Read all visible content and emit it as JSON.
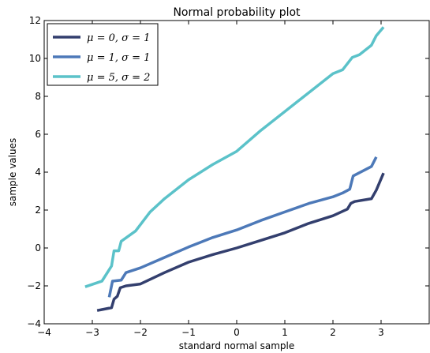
{
  "chart_data": {
    "type": "line",
    "title": "Normal probability plot",
    "xlabel": "standard normal sample",
    "ylabel": "sample values",
    "xlim": [
      -4,
      4
    ],
    "ylim": [
      -4,
      12
    ],
    "xticks": [
      -4,
      -3,
      -2,
      -1,
      0,
      1,
      2,
      3
    ],
    "yticks": [
      -4,
      -2,
      0,
      2,
      4,
      6,
      8,
      10,
      12
    ],
    "xtick_labels": [
      "−4",
      "−3",
      "−2",
      "−1",
      "0",
      "1",
      "2",
      "3"
    ],
    "ytick_labels": [
      "−4",
      "−2",
      "0",
      "2",
      "4",
      "6",
      "8",
      "10",
      "12"
    ],
    "grid": false,
    "legend_position": "top-left",
    "series": [
      {
        "name": "μ = 0, σ = 1",
        "color": "#333f6e",
        "x": [
          -2.9,
          -2.6,
          -2.55,
          -2.48,
          -2.42,
          -2.3,
          -2.0,
          -1.5,
          -1.0,
          -0.5,
          0.0,
          0.5,
          1.0,
          1.5,
          2.0,
          2.3,
          2.37,
          2.45,
          2.8,
          2.9,
          3.05
        ],
        "y": [
          -3.3,
          -3.15,
          -2.7,
          -2.55,
          -2.1,
          -2.0,
          -1.9,
          -1.3,
          -0.75,
          -0.35,
          0.0,
          0.4,
          0.8,
          1.3,
          1.7,
          2.05,
          2.35,
          2.45,
          2.6,
          3.05,
          3.95
        ]
      },
      {
        "name": "μ = 1, σ = 1",
        "color": "#4d79b8",
        "x": [
          -2.65,
          -2.58,
          -2.4,
          -2.3,
          -2.0,
          -1.5,
          -1.0,
          -0.5,
          0.0,
          0.5,
          1.0,
          1.5,
          2.0,
          2.2,
          2.35,
          2.42,
          2.8,
          2.9
        ],
        "y": [
          -2.6,
          -1.75,
          -1.7,
          -1.3,
          -1.05,
          -0.5,
          0.05,
          0.55,
          0.95,
          1.45,
          1.9,
          2.35,
          2.7,
          2.9,
          3.1,
          3.8,
          4.3,
          4.8
        ]
      },
      {
        "name": "μ = 5, σ = 2",
        "color": "#5bc2c9",
        "x": [
          -3.15,
          -2.8,
          -2.6,
          -2.55,
          -2.45,
          -2.4,
          -2.1,
          -1.8,
          -1.5,
          -1.0,
          -0.5,
          0.0,
          0.5,
          1.0,
          1.5,
          2.0,
          2.2,
          2.4,
          2.55,
          2.8,
          2.9,
          3.05
        ],
        "y": [
          -2.05,
          -1.75,
          -0.95,
          -0.15,
          -0.15,
          0.35,
          0.9,
          1.9,
          2.6,
          3.6,
          4.4,
          5.1,
          6.2,
          7.2,
          8.2,
          9.2,
          9.4,
          10.05,
          10.2,
          10.7,
          11.2,
          11.65
        ]
      }
    ]
  }
}
